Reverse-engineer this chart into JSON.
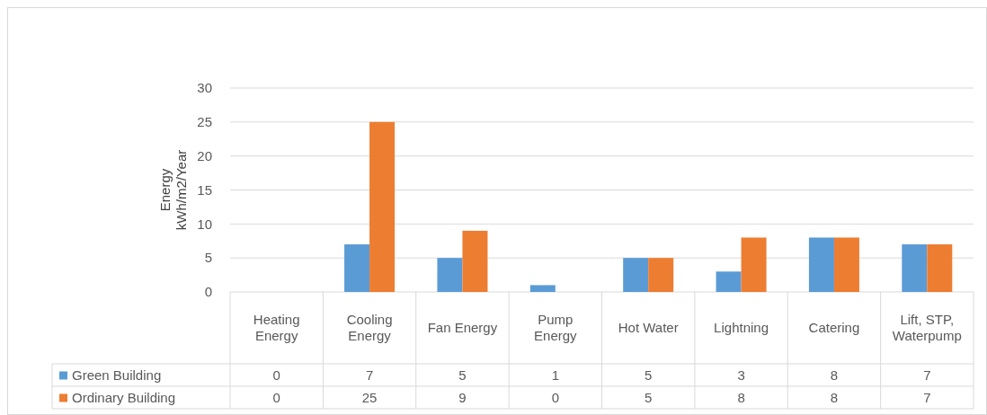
{
  "chart_data": {
    "type": "bar",
    "ylabel": "Energy kWh/m2/Year",
    "categories": [
      "Heating Energy",
      "Cooling Energy",
      "Fan Energy",
      "Pump Energy",
      "Hot Water",
      "Lightning",
      "Catering",
      "Lift, STP, Waterpump"
    ],
    "series": [
      {
        "name": "Green Building",
        "color": "#5b9bd5",
        "values": [
          0,
          7,
          5,
          1,
          5,
          3,
          8,
          7
        ]
      },
      {
        "name": "Ordinary Building",
        "color": "#ed7d31",
        "values": [
          0,
          25,
          9,
          0,
          5,
          8,
          8,
          7
        ]
      }
    ],
    "ylim": [
      0,
      30
    ],
    "yticks": [
      0,
      5,
      10,
      15,
      20,
      25,
      30
    ],
    "grid": "y",
    "legend": "bottom left",
    "data_labels": true
  }
}
